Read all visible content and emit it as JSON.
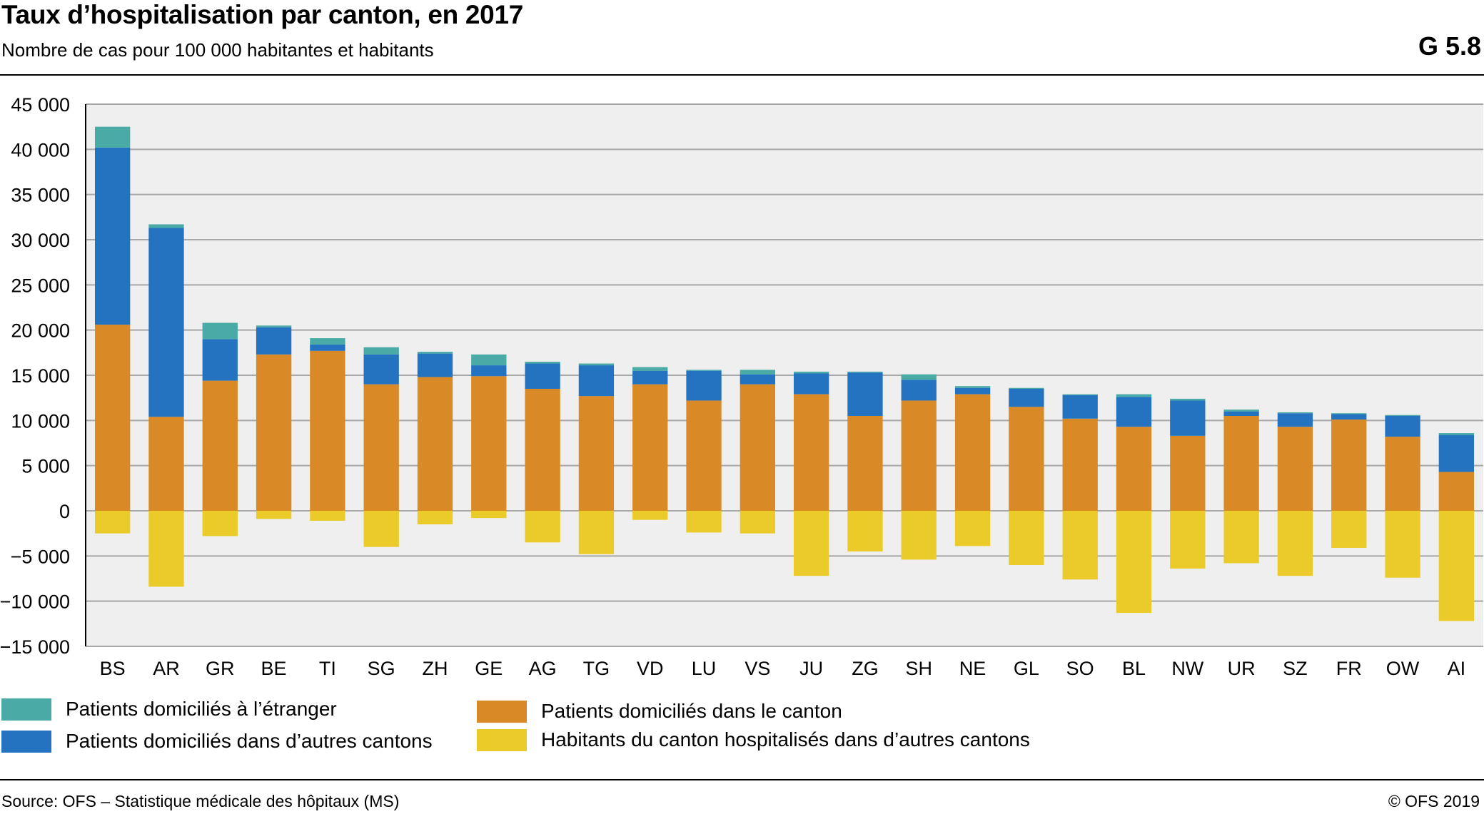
{
  "header": {
    "title": "Taux d’hospitalisation par canton, en 2017",
    "subtitle": "Nombre de cas pour 100 000 habitantes et habitants",
    "code": "G 5.8"
  },
  "footer": {
    "source": "Source: OFS – Statistique médicale des hôpitaux (MS)",
    "copyright": "© OFS 2019"
  },
  "colors": {
    "abroad": "#4aaaa5",
    "other_cantons": "#2473c0",
    "in_canton": "#d98a26",
    "residents_elsewhere": "#eacb2a",
    "plot_bg": "#efefef",
    "grid": "#a8a8a8"
  },
  "chart_data": {
    "type": "bar",
    "stacked": true,
    "categories": [
      "BS",
      "AR",
      "GR",
      "BE",
      "TI",
      "SG",
      "ZH",
      "GE",
      "AG",
      "TG",
      "VD",
      "LU",
      "VS",
      "JU",
      "ZG",
      "SH",
      "NE",
      "GL",
      "SO",
      "BL",
      "NW",
      "UR",
      "SZ",
      "FR",
      "OW",
      "AI"
    ],
    "ylim": [
      -15000,
      45000
    ],
    "yticks": [
      45000,
      40000,
      35000,
      30000,
      25000,
      20000,
      15000,
      10000,
      5000,
      0,
      -5000,
      -10000,
      -15000
    ],
    "ytick_labels": [
      "45 000",
      "40 000",
      "35 000",
      "30 000",
      "25 000",
      "20 000",
      "15 000",
      "10 000",
      "5 000",
      "0",
      "−5 000",
      "−10 000",
      "−15 000"
    ],
    "grid": true,
    "legend_position": "bottom",
    "series": [
      {
        "key": "in_canton",
        "name": "Patients domiciliés dans le canton",
        "values": [
          20600,
          10400,
          14400,
          17300,
          17700,
          14000,
          14800,
          14900,
          13500,
          12700,
          14000,
          12200,
          14000,
          12900,
          10500,
          12200,
          12900,
          11500,
          10200,
          9300,
          8300,
          10500,
          9300,
          10100,
          8200,
          4300
        ]
      },
      {
        "key": "other_cantons",
        "name": "Patients domiciliés dans d’autres cantons",
        "values": [
          19600,
          20900,
          4600,
          3000,
          700,
          3300,
          2600,
          1200,
          2800,
          3400,
          1500,
          3300,
          1100,
          2300,
          4800,
          2300,
          700,
          2000,
          2600,
          3300,
          3900,
          500,
          1500,
          600,
          2300,
          4100
        ]
      },
      {
        "key": "abroad",
        "name": "Patients domiciliés à l’étranger",
        "values": [
          2300,
          400,
          1800,
          200,
          700,
          800,
          200,
          1200,
          200,
          200,
          400,
          100,
          500,
          200,
          100,
          600,
          200,
          100,
          100,
          300,
          200,
          200,
          100,
          100,
          100,
          200
        ]
      },
      {
        "key": "residents_elsewhere",
        "name": "Habitants du canton hospitalisés dans d’autres cantons",
        "values": [
          -2500,
          -8400,
          -2800,
          -900,
          -1100,
          -4000,
          -1500,
          -800,
          -3500,
          -4800,
          -1000,
          -2400,
          -2500,
          -7200,
          -4500,
          -5400,
          -3900,
          -6000,
          -7600,
          -11300,
          -6400,
          -5800,
          -7200,
          -4100,
          -7400,
          -12200
        ]
      }
    ]
  }
}
